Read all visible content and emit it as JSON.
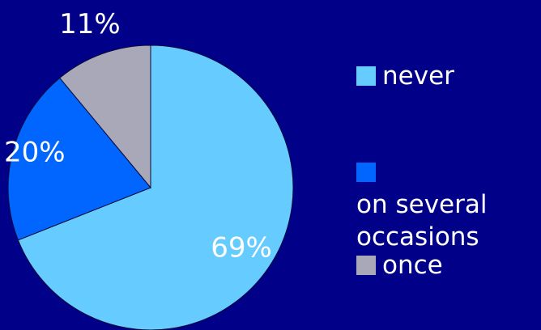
{
  "colors": {
    "background": "#010089",
    "never": "#66ccff",
    "several": "#0066ff",
    "once": "#a8a8b8",
    "text": "#ffffff",
    "edge": "#0a0a3a"
  },
  "chart_data": {
    "type": "pie",
    "slices": [
      {
        "label": "never",
        "value": 69,
        "value_label": "69%"
      },
      {
        "label": "on several occasions",
        "value": 20,
        "value_label": "20%"
      },
      {
        "label": "once",
        "value": 11,
        "value_label": "11%"
      }
    ],
    "legend": [
      "never",
      "on several occasions",
      "once"
    ],
    "legend_position": "right"
  }
}
